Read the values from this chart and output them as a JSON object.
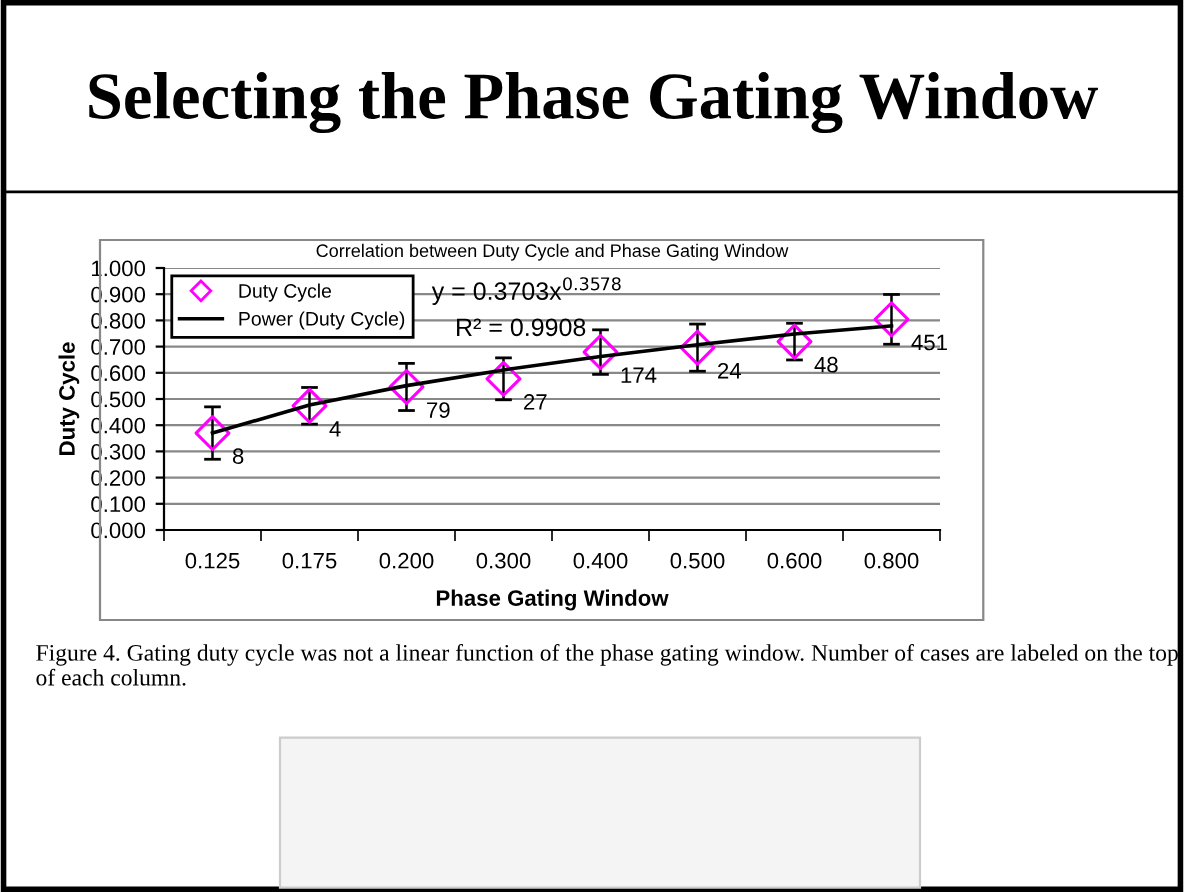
{
  "chart_data": {
    "type": "scatter",
    "title": "Correlation between Duty Cycle and Phase Gating Window",
    "subtitle": "Selecting the Phase Gating Window",
    "xlabel": "Phase Gating Window",
    "ylabel": "Duty Cycle",
    "categories": [
      "0.125",
      "0.175",
      "0.200",
      "0.300",
      "0.400",
      "0.500",
      "0.600",
      "0.800"
    ],
    "series": [
      {
        "name": "Duty Cycle",
        "marker": "diamond",
        "color": "#ff00ff",
        "values": [
          0.37,
          0.474,
          0.546,
          0.577,
          0.679,
          0.696,
          0.719,
          0.804
        ],
        "errors": [
          0.1,
          0.07,
          0.09,
          0.08,
          0.085,
          0.09,
          0.07,
          0.095
        ]
      },
      {
        "name": "Power (Duty Cycle)",
        "type": "line",
        "marker": "none",
        "line_style": "solid",
        "color": "#000000",
        "values": [
          0.37,
          0.477,
          0.551,
          0.611,
          0.662,
          0.707,
          0.748,
          0.779
        ]
      }
    ],
    "ylim": [
      0,
      1
    ],
    "yticks": [
      {
        "value": 0,
        "label": "0.000"
      },
      {
        "value": 0.1,
        "label": "0.100"
      },
      {
        "value": 0.2,
        "label": "0.200"
      },
      {
        "value": 0.3,
        "label": "0.300"
      },
      {
        "value": 0.4,
        "label": "0.400"
      },
      {
        "value": 0.5,
        "label": "0.500"
      },
      {
        "value": 0.6,
        "label": "0.600"
      },
      {
        "value": 0.7,
        "label": "0.700"
      },
      {
        "value": 0.8,
        "label": "0.800"
      },
      {
        "value": 0.9,
        "label": "0.900"
      },
      {
        "value": 1,
        "label": "1.000"
      }
    ],
    "grid": "y",
    "legend": "top left",
    "annotations": [
      "y = 0.3703x$^{0.3578}$",
      "R² = 0.9908",
      {
        "text": "8",
        "x": "0.125",
        "y": 0.37
      },
      {
        "text": "4",
        "x": "0.175",
        "y": 0.474
      },
      {
        "text": "79",
        "x": "0.200",
        "y": 0.546
      },
      {
        "text": "27",
        "x": "0.300",
        "y": 0.577
      },
      {
        "text": "174",
        "x": "0.400",
        "y": 0.679
      },
      {
        "text": "24",
        "x": "0.500",
        "y": 0.696
      },
      {
        "text": "48",
        "x": "0.600",
        "y": 0.719
      },
      {
        "text": "451",
        "x": "0.800",
        "y": 0.804
      },
      "Figure 4. Gating duty cycle was not a linear function of the phase gating window. Number of cases are labeled on the top of each column."
    ]
  }
}
